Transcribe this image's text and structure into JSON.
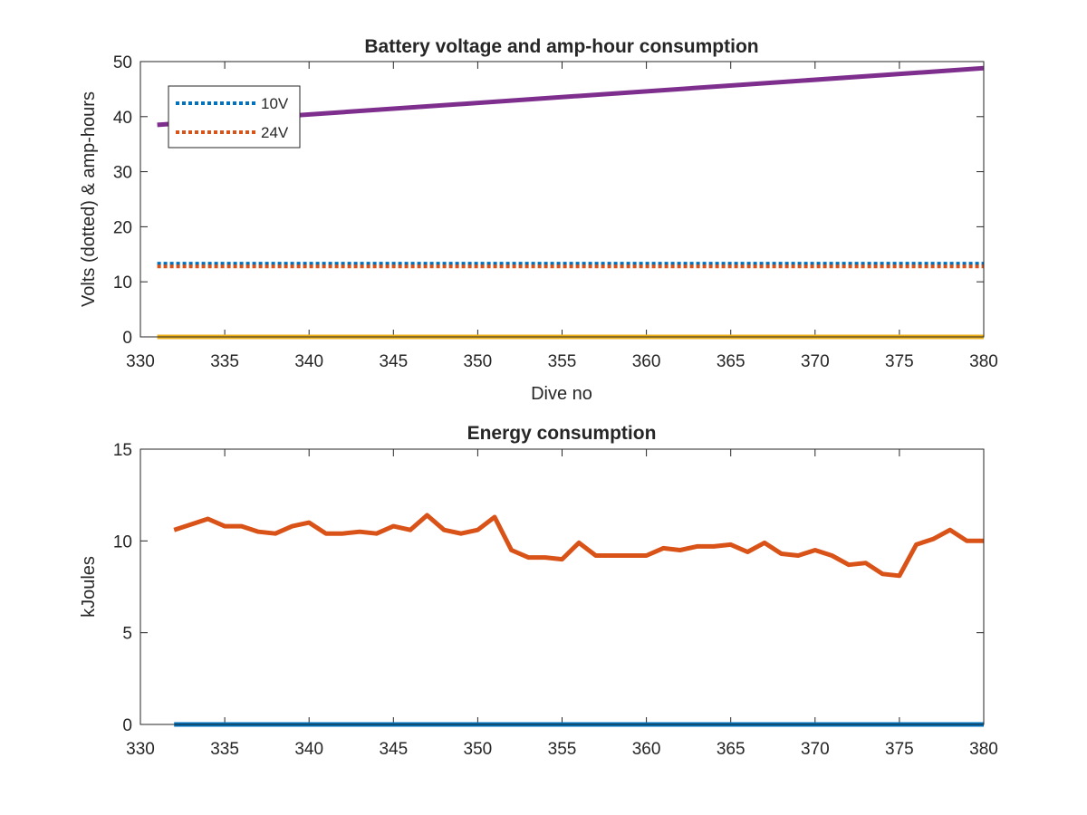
{
  "chart_data": [
    {
      "type": "line",
      "title": "Battery voltage and amp-hour consumption",
      "xlabel": "Dive no",
      "ylabel": "Volts (dotted) & amp-hours",
      "xlim": [
        330,
        380
      ],
      "ylim": [
        0,
        50
      ],
      "xticks": [
        330,
        335,
        340,
        345,
        350,
        355,
        360,
        365,
        370,
        375,
        380
      ],
      "yticks": [
        0,
        10,
        20,
        30,
        40,
        50
      ],
      "grid": false,
      "legend": "top-left",
      "series": [
        {
          "name": "10V",
          "style": "dotted",
          "color": "#0072BD",
          "x": [
            331,
            380
          ],
          "y": [
            13.3,
            13.3
          ]
        },
        {
          "name": "24V",
          "style": "dotted",
          "color": "#D95319",
          "x": [
            331,
            380
          ],
          "y": [
            12.8,
            12.8
          ]
        },
        {
          "style": "solid",
          "color": "#EDB120",
          "x": [
            331,
            380
          ],
          "y": [
            0,
            0
          ]
        },
        {
          "style": "solid",
          "color": "#7E2F8E",
          "x": [
            331,
            380
          ],
          "y": [
            38.5,
            48.8
          ]
        }
      ]
    },
    {
      "type": "line",
      "title": "Energy consumption",
      "xlabel": "",
      "ylabel": "kJoules",
      "xlim": [
        330,
        380
      ],
      "ylim": [
        0,
        15
      ],
      "xticks": [
        330,
        335,
        340,
        345,
        350,
        355,
        360,
        365,
        370,
        375,
        380
      ],
      "yticks": [
        0,
        5,
        10,
        15
      ],
      "grid": false,
      "series": [
        {
          "style": "solid",
          "color": "#0072BD",
          "x": [
            332,
            380
          ],
          "y": [
            0,
            0
          ]
        },
        {
          "style": "solid",
          "color": "#D95319",
          "x": [
            332,
            333,
            334,
            335,
            336,
            337,
            338,
            339,
            340,
            341,
            342,
            343,
            344,
            345,
            346,
            347,
            348,
            349,
            350,
            351,
            352,
            353,
            354,
            355,
            356,
            357,
            358,
            359,
            360,
            361,
            362,
            363,
            364,
            365,
            366,
            367,
            368,
            369,
            370,
            371,
            372,
            373,
            374,
            375,
            376,
            377,
            378,
            379,
            380
          ],
          "y": [
            10.6,
            10.9,
            11.2,
            10.8,
            10.8,
            10.5,
            10.4,
            10.8,
            11.0,
            10.4,
            10.4,
            10.5,
            10.4,
            10.8,
            10.6,
            11.4,
            10.6,
            10.4,
            10.6,
            11.3,
            9.5,
            9.1,
            9.1,
            9.0,
            9.9,
            9.2,
            9.2,
            9.2,
            9.2,
            9.6,
            9.5,
            9.7,
            9.7,
            9.8,
            9.4,
            9.9,
            9.3,
            9.2,
            9.5,
            9.2,
            8.7,
            8.8,
            8.2,
            8.1,
            9.8,
            10.1,
            10.6,
            10.0,
            10.0
          ]
        }
      ]
    }
  ]
}
